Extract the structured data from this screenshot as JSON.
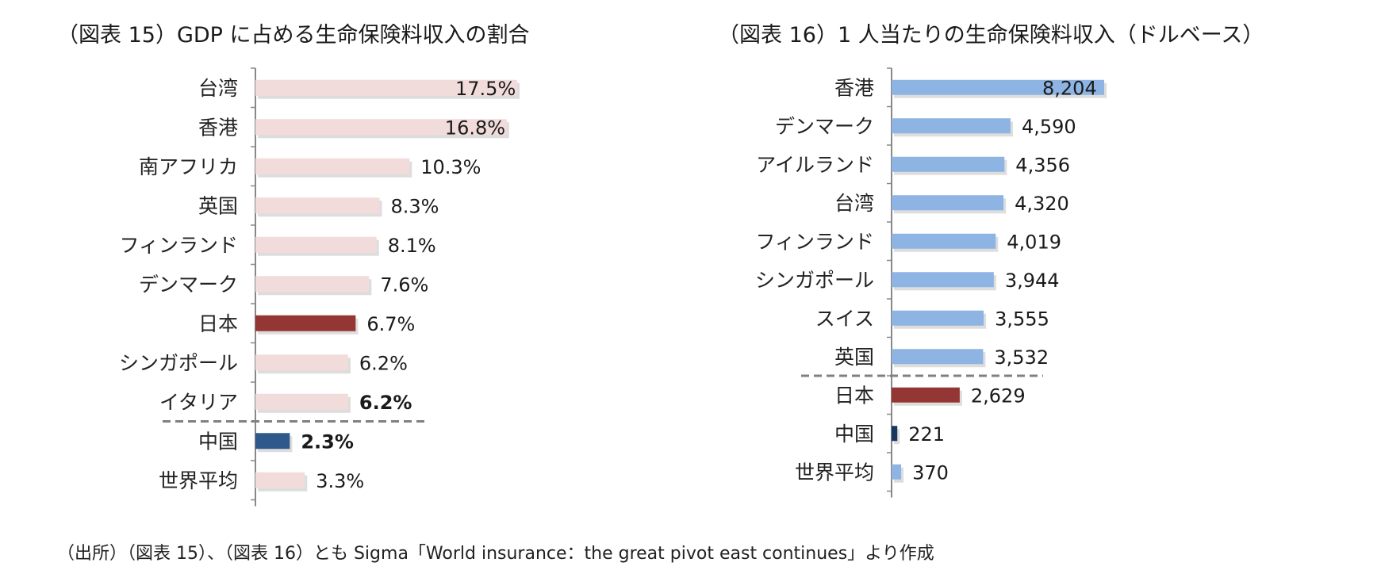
{
  "chart_data": [
    {
      "type": "bar",
      "orientation": "horizontal",
      "title": "（図表 15）GDP に占める生命保険料収入の割合",
      "categories": [
        "台湾",
        "香港",
        "南アフリカ",
        "英国",
        "フィンランド",
        "デンマーク",
        "日本",
        "シンガポール",
        "イタリア",
        "中国",
        "世界平均"
      ],
      "values": [
        17.5,
        16.8,
        10.3,
        8.3,
        8.1,
        7.6,
        6.7,
        6.2,
        6.2,
        2.3,
        3.3
      ],
      "value_labels": [
        "17.5%",
        "16.8%",
        "10.3%",
        "8.3%",
        "8.1%",
        "7.6%",
        "6.7%",
        "6.2%",
        "6.2%",
        "2.3%",
        "3.3%"
      ],
      "bold_labels": [
        "イタリア",
        "中国"
      ],
      "highlight": {
        "日本": "#943634",
        "中国": "#2e5a8b"
      },
      "default_color": "#f2dcdb",
      "separator_after": "イタリア",
      "xlim": [
        0,
        17.5
      ],
      "grid": false,
      "legend": "none"
    },
    {
      "type": "bar",
      "orientation": "horizontal",
      "title": "（図表 16）1 人当たりの生命保険料収入（ドルベース）",
      "categories": [
        "香港",
        "デンマーク",
        "アイルランド",
        "台湾",
        "フィンランド",
        "シンガポール",
        "スイス",
        "英国",
        "日本",
        "中国",
        "世界平均"
      ],
      "values": [
        8204,
        4590,
        4356,
        4320,
        4019,
        3944,
        3555,
        3532,
        2629,
        221,
        370
      ],
      "value_labels": [
        "8,204",
        "4,590",
        "4,356",
        "4,320",
        "4,019",
        "3,944",
        "3,555",
        "3,532",
        "2,629",
        "221",
        "370"
      ],
      "bold_labels": [],
      "highlight": {
        "日本": "#943634",
        "中国": "#17375e"
      },
      "default_color": "#8db4e2",
      "separator_after": "英国",
      "xlim": [
        0,
        8204
      ],
      "grid": false,
      "legend": "none"
    }
  ],
  "source_note": "（出所）（図表 15）、（図表 16）とも Sigma「World insurance：the great pivot east continues」より作成"
}
